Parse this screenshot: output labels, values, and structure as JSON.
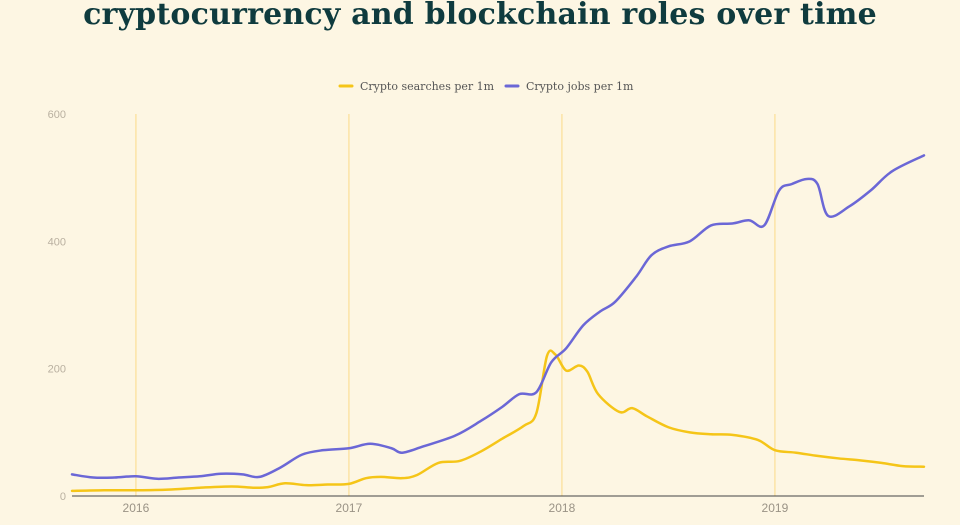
{
  "title": "cryptocurrency and blockchain roles over time",
  "chart_data": {
    "type": "line",
    "title": "cryptocurrency and blockchain roles over time",
    "legend_position": "top-center",
    "grid": "vertical lines at year boundaries",
    "x_start": 2015.7,
    "x_end": 2019.7,
    "xlim": [
      2015.7,
      2019.7
    ],
    "ylim": [
      0,
      600
    ],
    "y_ticks": [
      0,
      200,
      400,
      600
    ],
    "x_ticks": [
      2016,
      2017,
      2018,
      2019
    ],
    "x_tick_labels": [
      "2016",
      "2017",
      "2018",
      "2019"
    ],
    "series": [
      {
        "name": "Crypto searches per 1m",
        "color": "#f5c518",
        "points": [
          [
            2015.7,
            8
          ],
          [
            2015.85,
            9
          ],
          [
            2016.0,
            9
          ],
          [
            2016.15,
            10
          ],
          [
            2016.3,
            13
          ],
          [
            2016.45,
            15
          ],
          [
            2016.55,
            13
          ],
          [
            2016.62,
            14
          ],
          [
            2016.7,
            20
          ],
          [
            2016.8,
            17
          ],
          [
            2016.9,
            18
          ],
          [
            2017.0,
            19
          ],
          [
            2017.08,
            28
          ],
          [
            2017.15,
            30
          ],
          [
            2017.25,
            28
          ],
          [
            2017.32,
            33
          ],
          [
            2017.42,
            52
          ],
          [
            2017.52,
            55
          ],
          [
            2017.62,
            70
          ],
          [
            2017.72,
            90
          ],
          [
            2017.82,
            110
          ],
          [
            2017.88,
            130
          ],
          [
            2017.93,
            220
          ],
          [
            2017.97,
            222
          ],
          [
            2018.02,
            197
          ],
          [
            2018.08,
            205
          ],
          [
            2018.12,
            195
          ],
          [
            2018.17,
            160
          ],
          [
            2018.27,
            132
          ],
          [
            2018.33,
            138
          ],
          [
            2018.4,
            125
          ],
          [
            2018.5,
            108
          ],
          [
            2018.6,
            100
          ],
          [
            2018.7,
            97
          ],
          [
            2018.8,
            96
          ],
          [
            2018.92,
            88
          ],
          [
            2019.0,
            72
          ],
          [
            2019.1,
            68
          ],
          [
            2019.2,
            63
          ],
          [
            2019.3,
            59
          ],
          [
            2019.4,
            56
          ],
          [
            2019.5,
            52
          ],
          [
            2019.6,
            47
          ],
          [
            2019.7,
            46
          ]
        ]
      },
      {
        "name": "Crypto jobs per 1m",
        "color": "#6b67d6",
        "points": [
          [
            2015.7,
            34
          ],
          [
            2015.8,
            29
          ],
          [
            2015.9,
            29
          ],
          [
            2016.0,
            31
          ],
          [
            2016.1,
            27
          ],
          [
            2016.2,
            29
          ],
          [
            2016.3,
            31
          ],
          [
            2016.4,
            35
          ],
          [
            2016.5,
            34
          ],
          [
            2016.58,
            30
          ],
          [
            2016.68,
            45
          ],
          [
            2016.78,
            65
          ],
          [
            2016.88,
            72
          ],
          [
            2017.0,
            75
          ],
          [
            2017.1,
            82
          ],
          [
            2017.2,
            75
          ],
          [
            2017.25,
            68
          ],
          [
            2017.35,
            78
          ],
          [
            2017.5,
            95
          ],
          [
            2017.62,
            118
          ],
          [
            2017.72,
            140
          ],
          [
            2017.8,
            160
          ],
          [
            2017.88,
            163
          ],
          [
            2017.95,
            210
          ],
          [
            2018.02,
            232
          ],
          [
            2018.1,
            268
          ],
          [
            2018.18,
            290
          ],
          [
            2018.25,
            305
          ],
          [
            2018.35,
            345
          ],
          [
            2018.42,
            378
          ],
          [
            2018.5,
            392
          ],
          [
            2018.6,
            400
          ],
          [
            2018.7,
            425
          ],
          [
            2018.8,
            428
          ],
          [
            2018.88,
            433
          ],
          [
            2018.95,
            425
          ],
          [
            2019.02,
            480
          ],
          [
            2019.08,
            490
          ],
          [
            2019.15,
            498
          ],
          [
            2019.2,
            490
          ],
          [
            2019.25,
            440
          ],
          [
            2019.35,
            455
          ],
          [
            2019.45,
            480
          ],
          [
            2019.55,
            510
          ],
          [
            2019.7,
            535
          ]
        ]
      }
    ]
  },
  "legend": [
    {
      "label": "Crypto searches per 1m",
      "color": "#f5c518"
    },
    {
      "label": "Crypto jobs per 1m",
      "color": "#6b67d6"
    }
  ]
}
